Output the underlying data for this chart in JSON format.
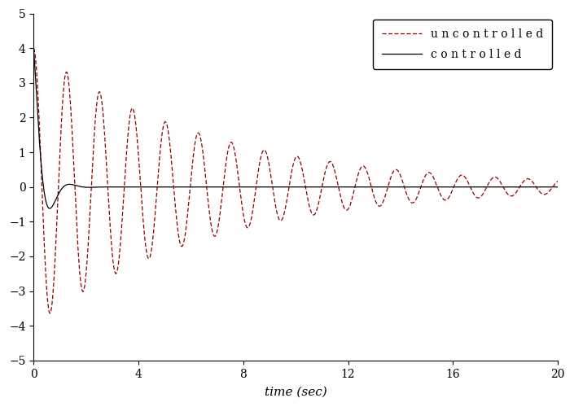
{
  "title": "",
  "xlabel": "time (sec)",
  "ylabel": "",
  "xlim": [
    0,
    20
  ],
  "ylim": [
    -5,
    5
  ],
  "xticks": [
    0,
    4,
    8,
    12,
    16,
    20
  ],
  "yticks": [
    -5,
    -4,
    -3,
    -2,
    -1,
    0,
    1,
    2,
    3,
    4,
    5
  ],
  "uncontrolled_color": "#8B0000",
  "controlled_color": "#000000",
  "legend_uncontrolled": "uncontrolled",
  "legend_controlled": "controlled",
  "uncontrolled_damping": 0.03,
  "uncontrolled_freq": 5.0,
  "uncontrolled_amplitude": 4.0,
  "controlled_damping": 0.55,
  "controlled_freq": 5.0,
  "controlled_amplitude": 4.0,
  "t_end": 20.0,
  "dt": 0.005,
  "figsize": [
    7.05,
    5.0
  ],
  "dpi": 100
}
